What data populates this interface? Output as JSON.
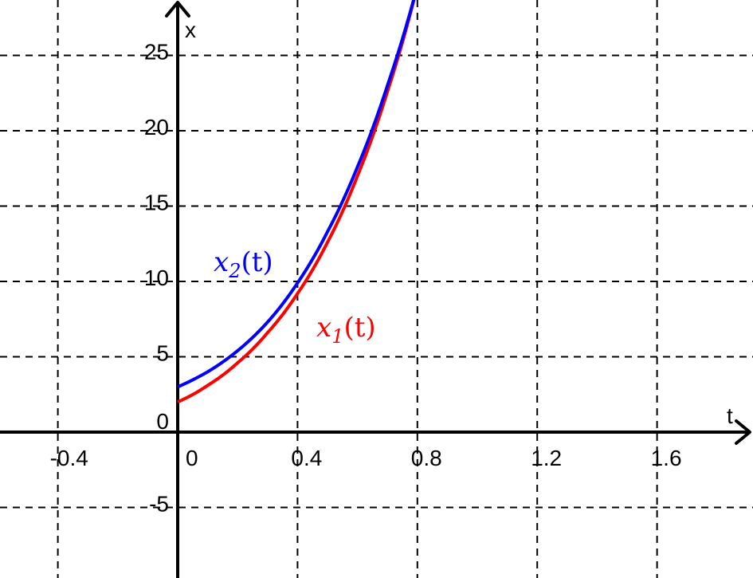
{
  "chart_data": {
    "type": "line",
    "xlabel": "t",
    "ylabel": "x",
    "xlim": [
      -0.6,
      1.9
    ],
    "ylim": [
      -9.6,
      28.6
    ],
    "grid": true,
    "grid_style": "dashed",
    "x_ticks": [
      {
        "value": -0.4,
        "label": "-0.4"
      },
      {
        "value": 0,
        "label": "0"
      },
      {
        "value": 0.4,
        "label": "0.4"
      },
      {
        "value": 0.8,
        "label": "0.8"
      },
      {
        "value": 1.2,
        "label": "1.2"
      },
      {
        "value": 1.6,
        "label": "1.6"
      }
    ],
    "y_ticks": [
      {
        "value": -5,
        "label": "-5"
      },
      {
        "value": 0,
        "label": "0"
      },
      {
        "value": 5,
        "label": "5"
      },
      {
        "value": 10,
        "label": "10"
      },
      {
        "value": 15,
        "label": "15"
      },
      {
        "value": 20,
        "label": "20"
      },
      {
        "value": 25,
        "label": "25"
      }
    ],
    "series": [
      {
        "name": "x_1(t)",
        "label_parts": {
          "var": "x",
          "sub": "1",
          "arg": "(t)"
        },
        "color": "#ff0000",
        "x": [
          0,
          0.1,
          0.2,
          0.3,
          0.4,
          0.5,
          0.6,
          0.7,
          0.8
        ],
        "y": [
          2.0,
          3.1,
          4.6,
          6.6,
          9.2,
          12.6,
          17.0,
          22.6,
          29.6
        ]
      },
      {
        "name": "x_2(t)",
        "label_parts": {
          "var": "x",
          "sub": "2",
          "arg": "(t)"
        },
        "color": "#0000ff",
        "x": [
          0,
          0.1,
          0.2,
          0.3,
          0.4,
          0.5,
          0.6,
          0.7,
          0.8
        ],
        "y": [
          3.0,
          4.0,
          5.4,
          7.3,
          9.9,
          13.3,
          17.6,
          23.0,
          29.6
        ]
      }
    ]
  }
}
